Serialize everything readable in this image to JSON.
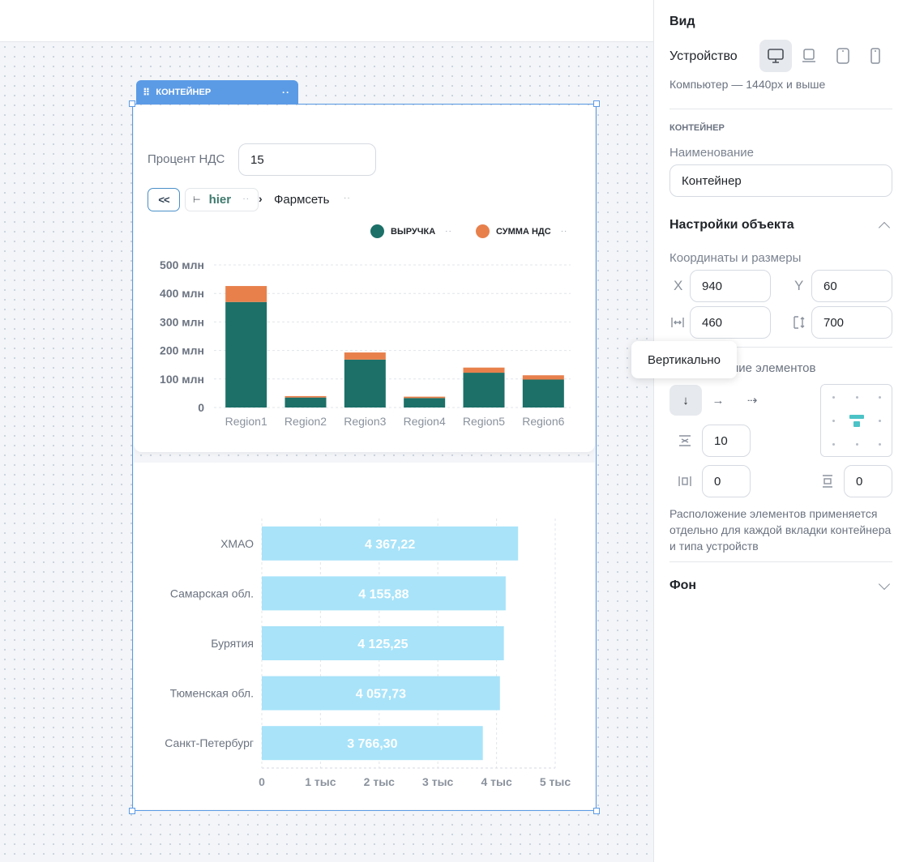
{
  "container": {
    "tag_label": "КОНТЕЙНЕР"
  },
  "filter": {
    "vat_label": "Процент НДС",
    "vat_value": "15"
  },
  "breadcrumb": {
    "back_label": "<<",
    "root": "hier",
    "current": "Фармсеть"
  },
  "panel": {
    "title": "Вид",
    "device_label": "Устройство",
    "device_hint": "Компьютер — 1440px и выше",
    "devices": [
      "desktop-icon",
      "laptop-icon",
      "tablet-icon",
      "mobile-icon"
    ],
    "section_cap": "КОНТЕЙНЕР",
    "name_label": "Наименование",
    "name_value": "Контейнер",
    "object_settings": "Настройки объекта",
    "coords_label": "Координаты и размеры",
    "x_label": "X",
    "x_value": "940",
    "y_label": "Y",
    "y_value": "60",
    "w_value": "460",
    "h_value": "700",
    "layout_label": "Расположение элементов",
    "gap_value": "10",
    "pad_h_value": "0",
    "pad_v_value": "0",
    "note": "Расположение элементов применяется отдельно для каждой вкладки контейнера и типа устройств",
    "background": "Фон",
    "tooltip": "Вертикально",
    "accent": "#5b9be6"
  },
  "chart_data": [
    {
      "type": "bar",
      "stacked": true,
      "categories": [
        "Region1",
        "Region2",
        "Region3",
        "Region4",
        "Region5",
        "Region6"
      ],
      "series": [
        {
          "name": "ВЫРУЧКА",
          "color": "#1c7068",
          "values": [
            370,
            35,
            168,
            33,
            122,
            98
          ]
        },
        {
          "name": "СУММА НДС",
          "color": "#e8804c",
          "values": [
            56,
            5,
            25,
            5,
            18,
            15
          ]
        }
      ],
      "yticks": [
        "500 млн",
        "400 млн",
        "300 млн",
        "200 млн",
        "100 млн",
        "0"
      ],
      "ylim": [
        0,
        500
      ],
      "unit": "млн",
      "legend": "top-right",
      "grid": true
    },
    {
      "type": "bar",
      "orientation": "horizontal",
      "categories": [
        "ХМАО",
        "Самарская обл.",
        "Бурятия",
        "Тюменская обл.",
        "Санкт-Петербург"
      ],
      "values": [
        4367.22,
        4155.88,
        4125.25,
        4057.73,
        3766.3
      ],
      "value_labels": [
        "4 367,22",
        "4 155,88",
        "4 125,25",
        "4 057,73",
        "3 766,30"
      ],
      "color": "#a8e3f9",
      "xticks": [
        "0",
        "1 тыс",
        "2 тыс",
        "3 тыс",
        "4 тыс",
        "5 тыс"
      ],
      "xlim": [
        0,
        5000
      ],
      "grid": true
    }
  ]
}
